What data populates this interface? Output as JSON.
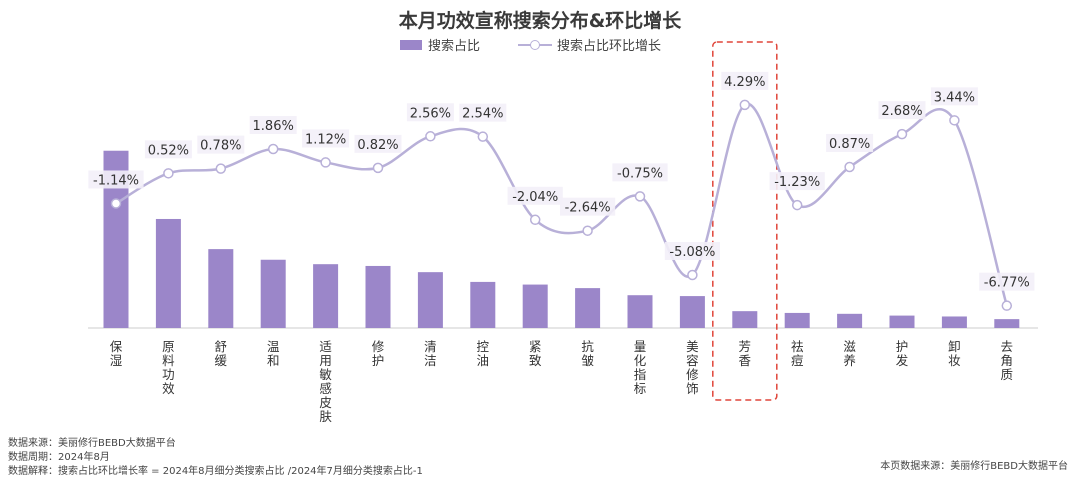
{
  "title": "本月功效宣称搜索分布&环比增长",
  "legend": {
    "bar_label": "搜索占比",
    "line_label": "搜索占比环比增长"
  },
  "colors": {
    "bar": "#9b86c9",
    "line": "#b8b0d8",
    "highlight_box": "#e0453a",
    "label_bg": "#f3eff8"
  },
  "chart_data": {
    "type": "bar+line",
    "categories": [
      "保湿",
      "原料功效",
      "舒缓",
      "温和",
      "适用敏感皮肤",
      "修护",
      "清洁",
      "控油",
      "紧致",
      "抗皱",
      "量化指标",
      "美容修饰",
      "芳香",
      "祛痘",
      "滋养",
      "护发",
      "卸妆",
      "去角质"
    ],
    "bar_series": {
      "name": "搜索占比",
      "values": [
        20.0,
        12.3,
        8.9,
        7.7,
        7.2,
        7.0,
        6.3,
        5.2,
        4.9,
        4.5,
        3.7,
        3.6,
        1.9,
        1.7,
        1.6,
        1.4,
        1.3,
        1.0
      ],
      "ylim": [
        0,
        22
      ]
    },
    "line_series": {
      "name": "搜索占比环比增长",
      "values": [
        -1.14,
        0.52,
        0.78,
        1.86,
        1.12,
        0.82,
        2.56,
        2.54,
        -2.04,
        -2.64,
        -0.75,
        -5.08,
        4.29,
        -1.23,
        0.87,
        2.68,
        3.44,
        -6.77
      ],
      "labels": [
        "-1.14%",
        "0.52%",
        "0.78%",
        "1.86%",
        "1.12%",
        "0.82%",
        "2.56%",
        "2.54%",
        "-2.04%",
        "-2.64%",
        "-0.75%",
        "-5.08%",
        "4.29%",
        "-1.23%",
        "0.87%",
        "2.68%",
        "3.44%",
        "-6.77%"
      ],
      "ylim": [
        -8,
        5
      ]
    },
    "highlight_category": "芳香"
  },
  "footer": {
    "source_left": "数据来源：美丽修行BEBD大数据平台",
    "cycle": "数据周期：2024年8月",
    "explain": "数据解释：搜索占比环比增长率 = 2024年8月细分类搜索占比 /2024年7月细分类搜索占比-1",
    "source_right": "本页数据来源：美丽修行BEBD大数据平台"
  }
}
